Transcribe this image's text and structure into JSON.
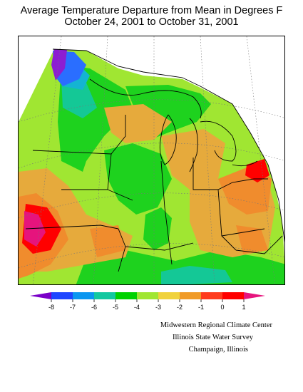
{
  "title": {
    "line1": "Average Temperature Departure from Mean in Degrees F",
    "line2": "October 24, 2001  to  October 31, 2001"
  },
  "legend": {
    "ticks": [
      "-8",
      "-7",
      "-6",
      "-5",
      "-4",
      "-3",
      "-2",
      "-1",
      "0",
      "1"
    ],
    "colors": [
      "#7a00c8",
      "#1e46ff",
      "#0a96f0",
      "#12c8a0",
      "#00d200",
      "#a0e632",
      "#f0d23c",
      "#f09b28",
      "#ff3c1e",
      "#ff0000",
      "#e6147d"
    ]
  },
  "map_colors": {
    "purple": "#8c1ed2",
    "blue": "#2a6eff",
    "cyan": "#14b4d2",
    "teal": "#14c896",
    "green": "#1ed21e",
    "lightgreen": "#a0e632",
    "yellow": "#e6aa3c",
    "orange": "#f08c2d",
    "red": "#ff0000",
    "magenta": "#e6147d",
    "background": "#ffffff"
  },
  "credits": {
    "line1": "Midwestern Regional Climate Center",
    "line2": "Illinois State Water Survey",
    "line3": "Champaign, Illinois"
  }
}
